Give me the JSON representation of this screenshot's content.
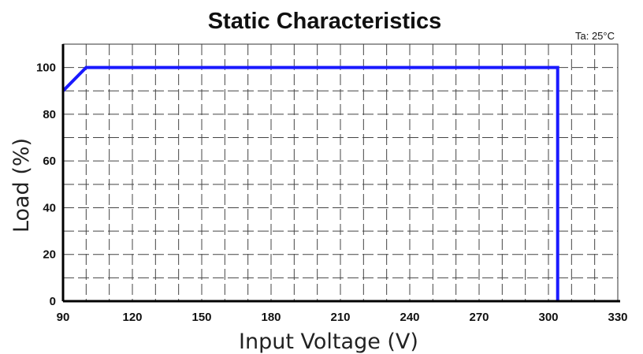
{
  "chart_data": {
    "type": "line",
    "title": "Static Characteristics",
    "annotation": "Ta: 25°C",
    "xlabel": "Input Voltage (V)",
    "ylabel": "Load (%)",
    "xlim": [
      90,
      330
    ],
    "ylim": [
      0,
      110
    ],
    "x_ticks": [
      90,
      120,
      150,
      180,
      210,
      240,
      270,
      300,
      330
    ],
    "y_ticks": [
      0,
      20,
      40,
      60,
      80,
      100
    ],
    "grid": true,
    "grid_style": "dashed",
    "series": [
      {
        "color": "#1a1aff",
        "points": [
          [
            90,
            90
          ],
          [
            100,
            100
          ],
          [
            304,
            100
          ],
          [
            304,
            0
          ]
        ]
      }
    ]
  }
}
